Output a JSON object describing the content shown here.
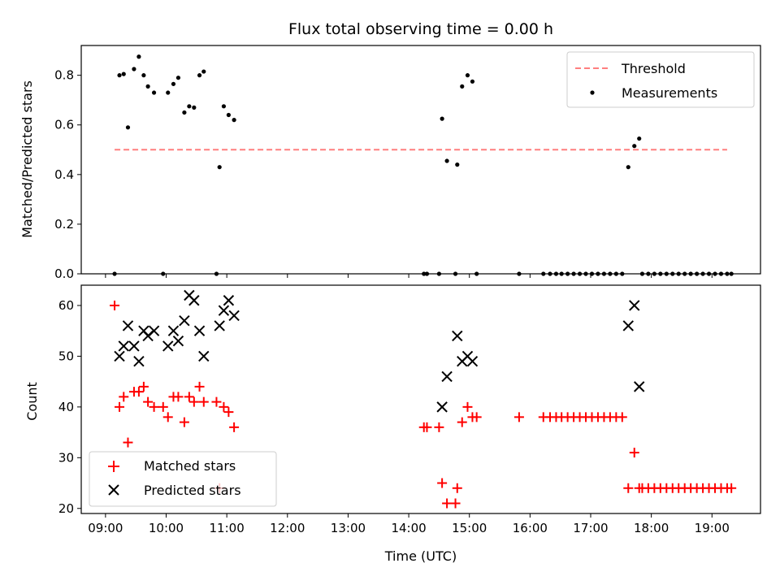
{
  "figure": {
    "title": "Flux total observing time = 0.00 h"
  },
  "chart_data": [
    {
      "type": "scatter",
      "ylabel": "Matched/Predicted stars",
      "xlabel": "",
      "xlim": [
        8.6,
        19.8
      ],
      "ylim": [
        0.0,
        0.92
      ],
      "yticks": [
        "0.0",
        "0.2",
        "0.4",
        "0.6",
        "0.8"
      ],
      "ytick_values": [
        0.0,
        0.2,
        0.4,
        0.6,
        0.8
      ],
      "xtick_values": [
        9,
        10,
        11,
        12,
        13,
        14,
        15,
        16,
        17,
        18,
        19
      ],
      "grid": false,
      "legend": {
        "placement": "top-right",
        "entries": [
          "Threshold",
          "Measurements"
        ]
      },
      "threshold": {
        "name": "Threshold",
        "y": 0.5,
        "x": [
          9.15,
          19.25
        ],
        "color": "#ff7f7f",
        "dash": true
      },
      "series": [
        {
          "name": "Measurements",
          "color": "#000000",
          "marker": "dot",
          "points": [
            [
              9.15,
              0.0
            ],
            [
              9.23,
              0.8
            ],
            [
              9.3,
              0.805
            ],
            [
              9.37,
              0.59
            ],
            [
              9.47,
              0.825
            ],
            [
              9.55,
              0.875
            ],
            [
              9.63,
              0.8
            ],
            [
              9.7,
              0.755
            ],
            [
              9.8,
              0.73
            ],
            [
              9.95,
              0.0
            ],
            [
              10.03,
              0.73
            ],
            [
              10.12,
              0.765
            ],
            [
              10.2,
              0.79
            ],
            [
              10.3,
              0.65
            ],
            [
              10.38,
              0.675
            ],
            [
              10.46,
              0.67
            ],
            [
              10.55,
              0.8
            ],
            [
              10.62,
              0.815
            ],
            [
              10.83,
              0.0
            ],
            [
              10.88,
              0.43
            ],
            [
              10.95,
              0.675
            ],
            [
              11.03,
              0.64
            ],
            [
              11.12,
              0.62
            ],
            [
              14.25,
              0.0
            ],
            [
              14.3,
              0.0
            ],
            [
              14.5,
              0.0
            ],
            [
              14.55,
              0.625
            ],
            [
              14.63,
              0.455
            ],
            [
              14.77,
              0.0
            ],
            [
              14.8,
              0.44
            ],
            [
              14.88,
              0.755
            ],
            [
              14.97,
              0.8
            ],
            [
              15.05,
              0.775
            ],
            [
              15.12,
              0.0
            ],
            [
              15.82,
              0.0
            ],
            [
              16.22,
              0.0
            ],
            [
              16.33,
              0.0
            ],
            [
              16.43,
              0.0
            ],
            [
              16.52,
              0.0
            ],
            [
              16.62,
              0.0
            ],
            [
              16.72,
              0.0
            ],
            [
              16.82,
              0.0
            ],
            [
              16.92,
              0.0
            ],
            [
              17.02,
              0.0
            ],
            [
              17.12,
              0.0
            ],
            [
              17.22,
              0.0
            ],
            [
              17.32,
              0.0
            ],
            [
              17.42,
              0.0
            ],
            [
              17.52,
              0.0
            ],
            [
              17.62,
              0.43
            ],
            [
              17.72,
              0.515
            ],
            [
              17.8,
              0.545
            ],
            [
              17.85,
              0.0
            ],
            [
              17.95,
              0.0
            ],
            [
              18.05,
              0.0
            ],
            [
              18.15,
              0.0
            ],
            [
              18.25,
              0.0
            ],
            [
              18.35,
              0.0
            ],
            [
              18.45,
              0.0
            ],
            [
              18.55,
              0.0
            ],
            [
              18.65,
              0.0
            ],
            [
              18.75,
              0.0
            ],
            [
              18.85,
              0.0
            ],
            [
              18.95,
              0.0
            ],
            [
              19.05,
              0.0
            ],
            [
              19.15,
              0.0
            ],
            [
              19.25,
              0.0
            ],
            [
              19.32,
              0.0
            ]
          ]
        }
      ]
    },
    {
      "type": "scatter",
      "ylabel": "Count",
      "xlabel": "Time (UTC)",
      "xlim": [
        8.6,
        19.8
      ],
      "ylim": [
        19,
        64
      ],
      "yticks": [
        "20",
        "30",
        "40",
        "50",
        "60"
      ],
      "ytick_values": [
        20,
        30,
        40,
        50,
        60
      ],
      "xticks": [
        "09:00",
        "10:00",
        "11:00",
        "12:00",
        "13:00",
        "14:00",
        "15:00",
        "16:00",
        "17:00",
        "18:00",
        "19:00"
      ],
      "xtick_values": [
        9,
        10,
        11,
        12,
        13,
        14,
        15,
        16,
        17,
        18,
        19
      ],
      "grid": false,
      "legend": {
        "placement": "bottom-left",
        "entries": [
          "Matched stars",
          "Predicted stars"
        ]
      },
      "series": [
        {
          "name": "Matched stars",
          "color": "#ff0000",
          "marker": "plus",
          "points": [
            [
              9.15,
              60
            ],
            [
              9.23,
              40
            ],
            [
              9.3,
              42
            ],
            [
              9.37,
              33
            ],
            [
              9.47,
              43
            ],
            [
              9.55,
              43
            ],
            [
              9.63,
              44
            ],
            [
              9.7,
              41
            ],
            [
              9.8,
              40
            ],
            [
              9.95,
              40
            ],
            [
              10.03,
              38
            ],
            [
              10.12,
              42
            ],
            [
              10.2,
              42
            ],
            [
              10.3,
              37
            ],
            [
              10.38,
              42
            ],
            [
              10.46,
              41
            ],
            [
              10.55,
              44
            ],
            [
              10.62,
              41
            ],
            [
              10.83,
              41
            ],
            [
              10.88,
              24
            ],
            [
              10.95,
              40
            ],
            [
              11.03,
              39
            ],
            [
              11.12,
              36
            ],
            [
              14.25,
              36
            ],
            [
              14.3,
              36
            ],
            [
              14.5,
              36
            ],
            [
              14.55,
              25
            ],
            [
              14.63,
              21
            ],
            [
              14.77,
              21
            ],
            [
              14.8,
              24
            ],
            [
              14.88,
              37
            ],
            [
              14.97,
              40
            ],
            [
              15.05,
              38
            ],
            [
              15.12,
              38
            ],
            [
              15.82,
              38
            ],
            [
              16.22,
              38
            ],
            [
              16.33,
              38
            ],
            [
              16.43,
              38
            ],
            [
              16.52,
              38
            ],
            [
              16.62,
              38
            ],
            [
              16.72,
              38
            ],
            [
              16.82,
              38
            ],
            [
              16.92,
              38
            ],
            [
              17.02,
              38
            ],
            [
              17.12,
              38
            ],
            [
              17.22,
              38
            ],
            [
              17.32,
              38
            ],
            [
              17.42,
              38
            ],
            [
              17.52,
              38
            ],
            [
              17.62,
              24
            ],
            [
              17.72,
              31
            ],
            [
              17.8,
              24
            ],
            [
              17.85,
              24
            ],
            [
              17.95,
              24
            ],
            [
              18.05,
              24
            ],
            [
              18.15,
              24
            ],
            [
              18.25,
              24
            ],
            [
              18.35,
              24
            ],
            [
              18.45,
              24
            ],
            [
              18.55,
              24
            ],
            [
              18.65,
              24
            ],
            [
              18.75,
              24
            ],
            [
              18.85,
              24
            ],
            [
              18.95,
              24
            ],
            [
              19.05,
              24
            ],
            [
              19.15,
              24
            ],
            [
              19.25,
              24
            ],
            [
              19.32,
              24
            ]
          ]
        },
        {
          "name": "Predicted stars",
          "color": "#000000",
          "marker": "x",
          "points": [
            [
              9.23,
              50
            ],
            [
              9.3,
              52
            ],
            [
              9.37,
              56
            ],
            [
              9.47,
              52
            ],
            [
              9.55,
              49
            ],
            [
              9.63,
              55
            ],
            [
              9.7,
              54
            ],
            [
              9.8,
              55
            ],
            [
              10.03,
              52
            ],
            [
              10.12,
              55
            ],
            [
              10.2,
              53
            ],
            [
              10.3,
              57
            ],
            [
              10.38,
              62
            ],
            [
              10.46,
              61
            ],
            [
              10.55,
              55
            ],
            [
              10.62,
              50
            ],
            [
              10.88,
              56
            ],
            [
              10.95,
              59
            ],
            [
              11.03,
              61
            ],
            [
              11.12,
              58
            ],
            [
              14.55,
              40
            ],
            [
              14.63,
              46
            ],
            [
              14.8,
              54
            ],
            [
              14.88,
              49
            ],
            [
              14.97,
              50
            ],
            [
              15.05,
              49
            ],
            [
              17.62,
              56
            ],
            [
              17.72,
              60
            ],
            [
              17.8,
              44
            ]
          ]
        }
      ]
    }
  ]
}
